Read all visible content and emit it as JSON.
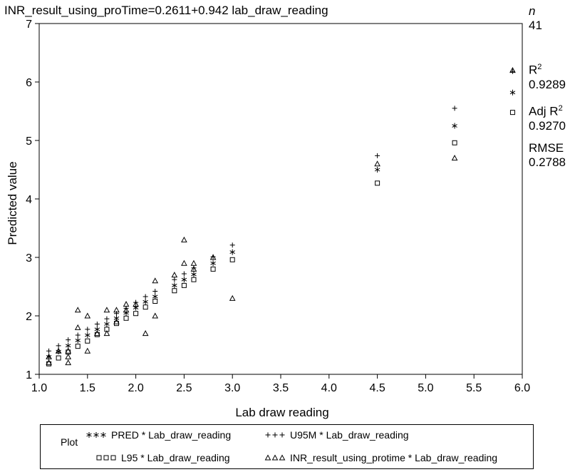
{
  "chart_data": {
    "type": "scatter",
    "title": "INR_result_using_proTime=0.2611+0.942 lab_draw_reading",
    "xlabel": "Lab draw reading",
    "ylabel": "Predicted value",
    "xlim": [
      1.0,
      6.0
    ],
    "ylim": [
      1,
      7
    ],
    "xticks": [
      "1.0",
      "1.5",
      "2.0",
      "2.5",
      "3.0",
      "3.5",
      "4.0",
      "4.5",
      "5.0",
      "5.5",
      "6.0"
    ],
    "yticks": [
      "1",
      "2",
      "3",
      "4",
      "5",
      "6",
      "7"
    ],
    "grid": false,
    "legend_position": "bottom",
    "stats": {
      "n_label": "n",
      "n_value": "41",
      "r2_label": "R",
      "r2_sup": "2",
      "r2_value": "0.9289",
      "adjr2_label": "Adj R",
      "adjr2_sup": "2",
      "adjr2_value": "0.9270",
      "rmse_label": "RMSE",
      "rmse_value": "0.2788"
    },
    "legend_title": "Plot",
    "series": [
      {
        "name": "PRED * Lab_draw_reading",
        "marker": "star",
        "x": [
          1.1,
          1.2,
          1.3,
          1.4,
          1.5,
          1.6,
          1.7,
          1.8,
          1.9,
          2.0,
          2.1,
          2.2,
          2.4,
          2.5,
          2.6,
          2.8,
          3.0,
          4.5,
          5.3,
          5.9
        ],
        "y": [
          1.3,
          1.39,
          1.49,
          1.58,
          1.67,
          1.77,
          1.86,
          1.96,
          2.05,
          2.14,
          2.24,
          2.33,
          2.52,
          2.62,
          2.71,
          2.9,
          3.09,
          4.5,
          5.25,
          5.82
        ]
      },
      {
        "name": "U95M * Lab_draw_reading",
        "marker": "plus",
        "x": [
          1.1,
          1.2,
          1.3,
          1.4,
          1.5,
          1.6,
          1.7,
          1.8,
          1.9,
          2.0,
          2.1,
          2.2,
          2.4,
          2.5,
          2.6,
          2.8,
          3.0,
          4.5,
          5.3,
          5.9
        ],
        "y": [
          1.4,
          1.49,
          1.59,
          1.67,
          1.77,
          1.86,
          1.95,
          2.04,
          2.13,
          2.23,
          2.33,
          2.42,
          2.62,
          2.72,
          2.82,
          3.01,
          3.21,
          4.74,
          5.55,
          6.18
        ]
      },
      {
        "name": "L95 * Lab_draw_reading",
        "marker": "square",
        "x": [
          1.1,
          1.2,
          1.3,
          1.4,
          1.5,
          1.6,
          1.7,
          1.8,
          1.9,
          2.0,
          2.1,
          2.2,
          2.4,
          2.5,
          2.6,
          2.8,
          3.0,
          4.5,
          5.3,
          5.9
        ],
        "y": [
          1.18,
          1.28,
          1.38,
          1.48,
          1.57,
          1.68,
          1.77,
          1.87,
          1.96,
          2.04,
          2.15,
          2.25,
          2.43,
          2.52,
          2.62,
          2.8,
          2.96,
          4.27,
          4.96,
          5.48
        ]
      },
      {
        "name": "INR_result_using_protime * Lab_draw_reading",
        "marker": "triangle",
        "x": [
          1.1,
          1.1,
          1.2,
          1.3,
          1.3,
          1.3,
          1.4,
          1.4,
          1.5,
          1.5,
          1.6,
          1.7,
          1.7,
          1.8,
          1.8,
          1.9,
          1.9,
          2.0,
          2.1,
          2.2,
          2.2,
          2.4,
          2.5,
          2.5,
          2.6,
          2.6,
          2.8,
          3.0,
          4.5,
          5.3,
          5.9
        ],
        "y": [
          1.2,
          1.3,
          1.4,
          1.2,
          1.3,
          1.4,
          1.8,
          2.1,
          1.4,
          2.0,
          1.7,
          1.7,
          2.1,
          1.9,
          2.1,
          2.2,
          2.1,
          2.2,
          1.7,
          2.0,
          2.6,
          2.7,
          2.9,
          3.3,
          2.8,
          2.9,
          3.0,
          2.3,
          4.6,
          4.7,
          6.2
        ]
      }
    ]
  }
}
